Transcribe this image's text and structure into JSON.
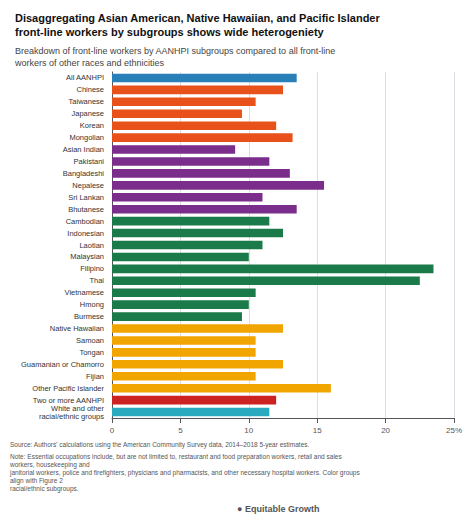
{
  "chart_data": {
    "type": "bar",
    "orientation": "horizontal",
    "title": "Disaggregating Asian American, Native Hawaiian, and Pacific Islander\nfront-line workers by subgroups shows wide heterogeniety",
    "subtitle": "Breakdown of front-line workers by AANHPI subgroups compared to all front-line\nworkers of other races and ethnicities",
    "categories": [
      "All AANHPI",
      "Chinese",
      "Taiwanese",
      "Japanese",
      "Korean",
      "Mongolian",
      "Asian Indian",
      "Pakistani",
      "Bangladeshi",
      "Nepalese",
      "Sri Lankan",
      "Bhutanese",
      "Cambodian",
      "Indonesian",
      "Laotian",
      "Malaysian",
      "Filipino",
      "Thai",
      "Vietnamese",
      "Hmong",
      "Burmese",
      "Native Hawaiian",
      "Samoan",
      "Tongan",
      "Guamanian or Chamorro",
      "Fijian",
      "Other Pacific Islander",
      "Two or more AANHPI",
      "White and other\nracial/ethnic groups"
    ],
    "values": [
      13.5,
      12.5,
      10.5,
      9.5,
      12.0,
      13.2,
      9.0,
      11.5,
      13.0,
      15.5,
      11.0,
      13.5,
      11.5,
      12.5,
      11.0,
      10.0,
      23.5,
      22.5,
      10.5,
      10.0,
      9.5,
      12.5,
      10.5,
      10.5,
      12.5,
      10.5,
      16.0,
      12.0,
      11.5
    ],
    "colors": [
      "#2980b9",
      "#e8521a",
      "#e8521a",
      "#e8521a",
      "#e8521a",
      "#e8521a",
      "#7b2d8b",
      "#7b2d8b",
      "#7b2d8b",
      "#7b2d8b",
      "#7b2d8b",
      "#7b2d8b",
      "#1a7a4a",
      "#1a7a4a",
      "#1a7a4a",
      "#1a7a4a",
      "#1a7a4a",
      "#1a7a4a",
      "#1a7a4a",
      "#1a7a4a",
      "#1a7a4a",
      "#f0a500",
      "#f0a500",
      "#f0a500",
      "#f0a500",
      "#f0a500",
      "#f0a500",
      "#cc2222",
      "#2aaabf"
    ],
    "xlim": [
      0,
      25
    ],
    "xticks": [
      0,
      5,
      10,
      15,
      20,
      {
        "value": 25,
        "label": "25%"
      }
    ],
    "grid": true,
    "annotations": [
      "Source: Authors' calculations using the American Community Survey data, 2014–2018 5-year estimates.",
      "Note: Essential occupations include, but are not limited to, restaurant and food preparation workers, retail and sales workers, housekeeping and\njanitorial workers, police and firefighters, physicians and pharmacists, and other necessary hospital workers. Color groups align with Figure 2\nracial/ethnic subgroups.",
      "● Equitable Growth"
    ]
  }
}
